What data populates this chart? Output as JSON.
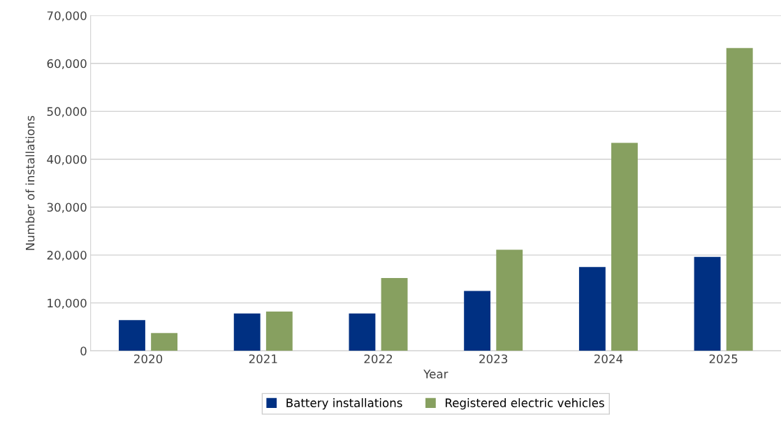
{
  "chart_data": {
    "type": "bar",
    "xlabel": "Year",
    "ylabel": "Number of installations",
    "categories": [
      "2020",
      "2021",
      "2022",
      "2023",
      "2024",
      "2025"
    ],
    "series": [
      {
        "name": "Battery installations",
        "color": "#003082",
        "values": [
          6400,
          7800,
          7800,
          12500,
          17500,
          19600
        ]
      },
      {
        "name": "Registered electric vehicles",
        "color": "#87a060",
        "values": [
          3700,
          8200,
          15200,
          21100,
          43400,
          63200
        ]
      }
    ],
    "ylim": [
      0,
      70000
    ],
    "yticks": [
      0,
      {
        "value": 10000,
        "label": "10,000"
      },
      {
        "value": 20000,
        "label": "20,000"
      },
      {
        "value": 30000,
        "label": "30,000"
      },
      {
        "value": 40000,
        "label": "40,000"
      },
      {
        "value": 50000,
        "label": "50,000"
      },
      {
        "value": 60000,
        "label": "60,000"
      },
      {
        "value": 70000,
        "label": "70,000"
      }
    ],
    "grid": "y",
    "legend": "bottom"
  }
}
